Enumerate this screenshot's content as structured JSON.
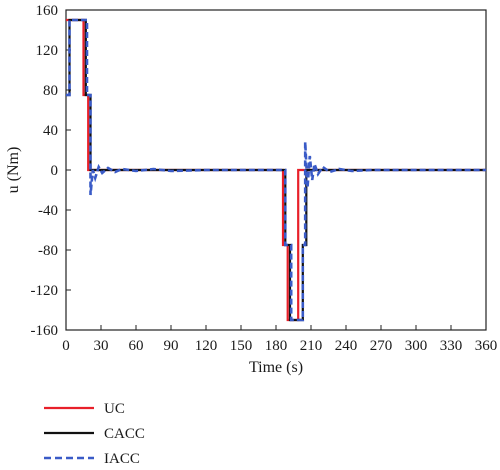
{
  "chart_data": {
    "type": "line",
    "title": "",
    "xlabel": "Time (s)",
    "ylabel": "u (Nm)",
    "xlim": [
      0,
      360
    ],
    "ylim": [
      -160,
      160
    ],
    "x_ticks": [
      0,
      30,
      60,
      90,
      120,
      150,
      180,
      210,
      240,
      270,
      300,
      330,
      360
    ],
    "y_ticks": [
      160,
      120,
      80,
      40,
      0,
      -40,
      -80,
      -120,
      -160
    ],
    "grid": false,
    "legend_position": "below-left",
    "series": [
      {
        "name": "UC",
        "color": "#e8202a",
        "style": "solid",
        "points": [
          [
            0,
            150
          ],
          [
            15,
            150
          ],
          [
            15,
            75
          ],
          [
            19,
            75
          ],
          [
            19,
            0
          ],
          [
            22,
            0
          ],
          [
            186,
            0
          ],
          [
            186,
            -75
          ],
          [
            190,
            -75
          ],
          [
            190,
            -150
          ],
          [
            199,
            -150
          ],
          [
            199,
            0
          ],
          [
            204,
            0
          ],
          [
            360,
            0
          ]
        ]
      },
      {
        "name": "CACC",
        "color": "#111111",
        "style": "solid",
        "points": [
          [
            0,
            75
          ],
          [
            3,
            75
          ],
          [
            3,
            150
          ],
          [
            17,
            150
          ],
          [
            17,
            75
          ],
          [
            21,
            75
          ],
          [
            21,
            0
          ],
          [
            24,
            0
          ],
          [
            188,
            0
          ],
          [
            188,
            -75
          ],
          [
            192,
            -75
          ],
          [
            192,
            -150
          ],
          [
            203,
            -150
          ],
          [
            203,
            -75
          ],
          [
            206,
            -75
          ],
          [
            206,
            0
          ],
          [
            360,
            0
          ]
        ]
      },
      {
        "name": "IACC",
        "color": "#3a5bc7",
        "style": "dashed",
        "points": [
          [
            0,
            75
          ],
          [
            3,
            75
          ],
          [
            3,
            150
          ],
          [
            18,
            150
          ],
          [
            18,
            75
          ],
          [
            21,
            75
          ],
          [
            21,
            -25
          ],
          [
            23,
            0
          ],
          [
            25,
            -8
          ],
          [
            28,
            3
          ],
          [
            31,
            -3
          ],
          [
            36,
            2
          ],
          [
            42,
            -2
          ],
          [
            48,
            1
          ],
          [
            60,
            -1
          ],
          [
            75,
            1
          ],
          [
            90,
            -1
          ],
          [
            120,
            0
          ],
          [
            188,
            0
          ],
          [
            188,
            -75
          ],
          [
            193,
            -75
          ],
          [
            193,
            -150
          ],
          [
            203,
            -150
          ],
          [
            203,
            -75
          ],
          [
            205,
            -75
          ],
          [
            205,
            28
          ],
          [
            207,
            -18
          ],
          [
            209,
            14
          ],
          [
            211,
            -10
          ],
          [
            213,
            6
          ],
          [
            216,
            -4
          ],
          [
            220,
            3
          ],
          [
            226,
            -2
          ],
          [
            234,
            1
          ],
          [
            245,
            -1
          ],
          [
            262,
            0
          ],
          [
            360,
            0
          ]
        ]
      }
    ]
  }
}
